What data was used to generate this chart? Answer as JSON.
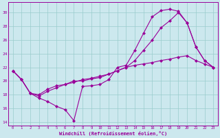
{
  "xlabel": "Windchill (Refroidissement éolien,°C)",
  "bg_color": "#cce8ee",
  "line_color": "#990099",
  "grid_color": "#99cccc",
  "xlim": [
    -0.5,
    23.5
  ],
  "ylim": [
    13.5,
    31.5
  ],
  "xticks": [
    0,
    1,
    2,
    3,
    4,
    5,
    6,
    7,
    8,
    9,
    10,
    11,
    12,
    13,
    14,
    15,
    16,
    17,
    18,
    19,
    20,
    21,
    22,
    23
  ],
  "yticks": [
    14,
    16,
    18,
    20,
    22,
    24,
    26,
    28,
    30
  ],
  "line1_x": [
    0,
    1,
    2,
    3,
    4,
    5,
    6,
    7,
    8,
    9,
    10,
    11,
    12,
    13,
    14,
    15,
    16,
    17,
    18,
    19,
    20,
    21,
    22,
    23
  ],
  "line1_y": [
    21.5,
    20.2,
    18.2,
    17.5,
    17.0,
    16.3,
    15.8,
    14.2,
    19.2,
    19.3,
    19.5,
    20.2,
    22.0,
    22.3,
    24.5,
    27.0,
    29.4,
    30.3,
    30.5,
    30.2,
    28.5,
    25.0,
    23.0,
    22.0
  ],
  "line2_x": [
    0,
    1,
    2,
    3,
    4,
    5,
    6,
    7,
    8,
    9,
    10,
    11,
    12,
    13,
    14,
    15,
    16,
    17,
    18,
    19,
    20,
    21,
    22,
    23
  ],
  "line2_y": [
    21.5,
    20.2,
    18.2,
    18.0,
    18.8,
    19.3,
    19.5,
    19.8,
    20.2,
    20.4,
    20.7,
    21.0,
    21.5,
    22.0,
    23.0,
    24.5,
    26.0,
    27.8,
    28.8,
    30.0,
    28.5,
    25.0,
    23.0,
    22.0
  ],
  "line3_x": [
    0,
    1,
    2,
    3,
    4,
    5,
    6,
    7,
    8,
    9,
    10,
    11,
    12,
    13,
    14,
    15,
    16,
    17,
    18,
    19,
    20,
    21,
    22,
    23
  ],
  "line3_y": [
    21.5,
    20.2,
    18.2,
    17.8,
    18.5,
    19.0,
    19.5,
    20.0,
    20.0,
    20.3,
    20.5,
    21.0,
    21.5,
    22.0,
    22.3,
    22.5,
    22.7,
    23.0,
    23.2,
    23.5,
    23.7,
    23.0,
    22.5,
    22.0
  ]
}
